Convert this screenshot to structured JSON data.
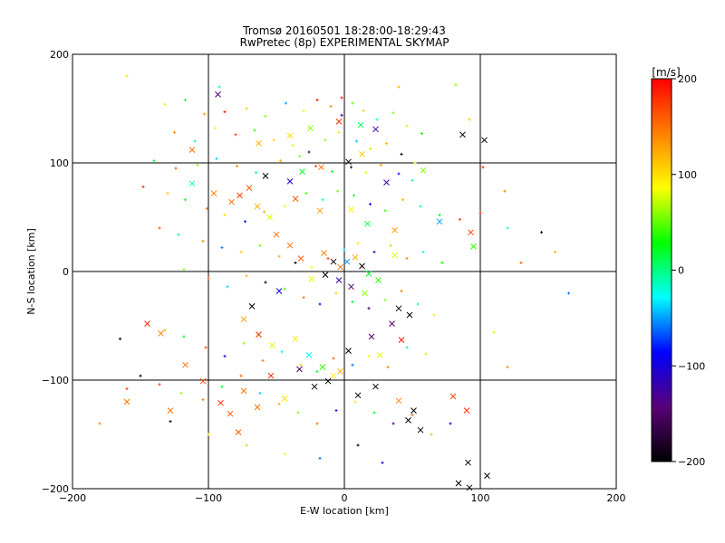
{
  "chart_data": {
    "type": "scatter",
    "title": "Tromsø 20160501 18:28:00-18:29:43",
    "subtitle": "RwPretec (8p) EXPERIMENTAL SKYMAP",
    "xlabel": "E-W location [km]",
    "ylabel": "N-S location [km]",
    "xlim": [
      -200,
      200
    ],
    "ylim": [
      -200,
      200
    ],
    "xticks": [
      -200,
      -100,
      0,
      100,
      200
    ],
    "yticks": [
      -200,
      -100,
      0,
      100,
      200
    ],
    "grid": true,
    "colorbar": {
      "label": "[m/s]",
      "range": [
        -200,
        200
      ],
      "ticks": [
        -200,
        -100,
        0,
        100,
        200
      ],
      "colormap": [
        "#000000",
        "#5a0078",
        "#0000ff",
        "#00ffff",
        "#00ff00",
        "#ffff00",
        "#ff8000",
        "#ff0000"
      ]
    },
    "series": [
      {
        "marker": "x",
        "points": [
          [
            -93,
            163,
            -150
          ],
          [
            -112,
            112,
            150
          ],
          [
            -63,
            118,
            120
          ],
          [
            -40,
            125,
            100
          ],
          [
            -25,
            132,
            60
          ],
          [
            -4,
            138,
            180
          ],
          [
            12,
            135,
            10
          ],
          [
            23,
            131,
            -120
          ],
          [
            87,
            126,
            -200
          ],
          [
            103,
            121,
            -200
          ],
          [
            -58,
            88,
            -200
          ],
          [
            -40,
            83,
            -100
          ],
          [
            -31,
            92,
            20
          ],
          [
            -17,
            96,
            150
          ],
          [
            3,
            101,
            -200
          ],
          [
            13,
            108,
            110
          ],
          [
            31,
            82,
            -120
          ],
          [
            58,
            93,
            60
          ],
          [
            -112,
            81,
            -20
          ],
          [
            -96,
            72,
            140
          ],
          [
            -83,
            64,
            150
          ],
          [
            -77,
            70,
            170
          ],
          [
            -70,
            77,
            160
          ],
          [
            -64,
            60,
            120
          ],
          [
            -55,
            50,
            80
          ],
          [
            -36,
            67,
            160
          ],
          [
            -18,
            56,
            130
          ],
          [
            5,
            57,
            90
          ],
          [
            17,
            44,
            10
          ],
          [
            37,
            38,
            130
          ],
          [
            70,
            46,
            -50
          ],
          [
            93,
            36,
            170
          ],
          [
            95,
            23,
            40
          ],
          [
            -50,
            34,
            150
          ],
          [
            -40,
            24,
            150
          ],
          [
            -32,
            12,
            160
          ],
          [
            -15,
            17,
            140
          ],
          [
            -8,
            9,
            -200
          ],
          [
            -3,
            4,
            150
          ],
          [
            2,
            9,
            -50
          ],
          [
            8,
            13,
            120
          ],
          [
            13,
            5,
            -200
          ],
          [
            18,
            -2,
            20
          ],
          [
            -14,
            -3,
            -200
          ],
          [
            -4,
            -8,
            -120
          ],
          [
            5,
            -14,
            -150
          ],
          [
            15,
            -20,
            60
          ],
          [
            25,
            -8,
            40
          ],
          [
            37,
            15,
            80
          ],
          [
            -24,
            -7,
            80
          ],
          [
            -48,
            -18,
            -100
          ],
          [
            -68,
            -32,
            -200
          ],
          [
            -74,
            -44,
            130
          ],
          [
            -63,
            -58,
            180
          ],
          [
            -53,
            -68,
            80
          ],
          [
            -36,
            -62,
            90
          ],
          [
            -26,
            -77,
            -30
          ],
          [
            -16,
            -88,
            40
          ],
          [
            -8,
            -96,
            90
          ],
          [
            3,
            -73,
            -200
          ],
          [
            20,
            -60,
            -150
          ],
          [
            35,
            -48,
            -150
          ],
          [
            42,
            -63,
            190
          ],
          [
            26,
            -77,
            80
          ],
          [
            -145,
            -48,
            180
          ],
          [
            -135,
            -57,
            140
          ],
          [
            -117,
            -86,
            150
          ],
          [
            -104,
            -101,
            170
          ],
          [
            -91,
            -121,
            180
          ],
          [
            -84,
            -131,
            160
          ],
          [
            -74,
            -110,
            150
          ],
          [
            -64,
            -125,
            150
          ],
          [
            -54,
            -96,
            190
          ],
          [
            -44,
            -117,
            100
          ],
          [
            -33,
            -90,
            -150
          ],
          [
            -22,
            -106,
            -200
          ],
          [
            -12,
            -101,
            -200
          ],
          [
            -3,
            -92,
            120
          ],
          [
            10,
            -114,
            -200
          ],
          [
            23,
            -106,
            -200
          ],
          [
            40,
            -119,
            140
          ],
          [
            47,
            -137,
            -200
          ],
          [
            51,
            -128,
            -200
          ],
          [
            56,
            -146,
            -200
          ],
          [
            80,
            -115,
            170
          ],
          [
            90,
            -128,
            180
          ],
          [
            91,
            -176,
            -200
          ],
          [
            84,
            -195,
            -200
          ],
          [
            105,
            -188,
            -200
          ],
          [
            92,
            -199,
            -200
          ],
          [
            40,
            -34,
            -200
          ],
          [
            48,
            -40,
            -200
          ],
          [
            -160,
            -120,
            150
          ],
          [
            -128,
            -128,
            150
          ],
          [
            -78,
            -148,
            160
          ]
        ]
      },
      {
        "marker": "+",
        "points": [
          [
            -132,
            154,
            80
          ],
          [
            -117,
            158,
            20
          ],
          [
            -103,
            145,
            130
          ],
          [
            -88,
            147,
            190
          ],
          [
            -72,
            150,
            110
          ],
          [
            -58,
            143,
            60
          ],
          [
            -43,
            155,
            -50
          ],
          [
            -30,
            148,
            90
          ],
          [
            -20,
            158,
            190
          ],
          [
            -10,
            152,
            140
          ],
          [
            -2,
            144,
            -120
          ],
          [
            6,
            155,
            50
          ],
          [
            14,
            148,
            110
          ],
          [
            24,
            140,
            -20
          ],
          [
            36,
            146,
            60
          ],
          [
            46,
            134,
            100
          ],
          [
            57,
            127,
            30
          ],
          [
            -125,
            128,
            140
          ],
          [
            -110,
            120,
            -10
          ],
          [
            -95,
            132,
            90
          ],
          [
            -80,
            126,
            170
          ],
          [
            -66,
            130,
            40
          ],
          [
            -52,
            121,
            100
          ],
          [
            -38,
            116,
            80
          ],
          [
            -26,
            110,
            -150
          ],
          [
            -14,
            121,
            60
          ],
          [
            -4,
            128,
            100
          ],
          [
            9,
            120,
            -40
          ],
          [
            19,
            113,
            70
          ],
          [
            31,
            118,
            120
          ],
          [
            42,
            108,
            -200
          ],
          [
            52,
            100,
            80
          ],
          [
            -140,
            102,
            10
          ],
          [
            -124,
            95,
            160
          ],
          [
            -108,
            98,
            60
          ],
          [
            -94,
            104,
            -40
          ],
          [
            -79,
            97,
            140
          ],
          [
            -65,
            91,
            0
          ],
          [
            -47,
            102,
            120
          ],
          [
            -33,
            106,
            60
          ],
          [
            -21,
            97,
            170
          ],
          [
            -9,
            92,
            30
          ],
          [
            5,
            96,
            -150
          ],
          [
            16,
            91,
            80
          ],
          [
            27,
            98,
            130
          ],
          [
            40,
            90,
            -80
          ],
          [
            50,
            84,
            0
          ],
          [
            -148,
            78,
            180
          ],
          [
            -130,
            72,
            110
          ],
          [
            -117,
            66,
            20
          ],
          [
            -101,
            58,
            160
          ],
          [
            -88,
            52,
            100
          ],
          [
            -73,
            46,
            -80
          ],
          [
            -59,
            55,
            120
          ],
          [
            -44,
            60,
            80
          ],
          [
            -28,
            72,
            40
          ],
          [
            -16,
            66,
            -20
          ],
          [
            -5,
            74,
            60
          ],
          [
            7,
            70,
            20
          ],
          [
            19,
            62,
            -100
          ],
          [
            30,
            56,
            40
          ],
          [
            43,
            66,
            120
          ],
          [
            56,
            60,
            -10
          ],
          [
            70,
            52,
            30
          ],
          [
            85,
            48,
            170
          ],
          [
            100,
            54,
            180
          ],
          [
            120,
            40,
            -20
          ],
          [
            145,
            36,
            -200
          ],
          [
            -136,
            40,
            160
          ],
          [
            -122,
            34,
            0
          ],
          [
            -104,
            28,
            140
          ],
          [
            -90,
            22,
            -60
          ],
          [
            -76,
            18,
            110
          ],
          [
            -62,
            24,
            50
          ],
          [
            -48,
            14,
            120
          ],
          [
            -36,
            8,
            -200
          ],
          [
            -24,
            4,
            80
          ],
          [
            -12,
            12,
            170
          ],
          [
            0,
            20,
            -40
          ],
          [
            10,
            26,
            100
          ],
          [
            22,
            18,
            -120
          ],
          [
            34,
            24,
            60
          ],
          [
            46,
            12,
            140
          ],
          [
            58,
            18,
            -20
          ],
          [
            72,
            8,
            30
          ],
          [
            -118,
            2,
            60
          ],
          [
            -100,
            -6,
            160
          ],
          [
            -86,
            -14,
            -40
          ],
          [
            -72,
            -4,
            120
          ],
          [
            -58,
            -10,
            -200
          ],
          [
            -44,
            -16,
            40
          ],
          [
            -30,
            -24,
            150
          ],
          [
            -18,
            -30,
            -80
          ],
          [
            -6,
            -20,
            110
          ],
          [
            6,
            -28,
            20
          ],
          [
            18,
            -34,
            -160
          ],
          [
            30,
            -26,
            60
          ],
          [
            42,
            -18,
            140
          ],
          [
            54,
            -30,
            -20
          ],
          [
            66,
            -40,
            100
          ],
          [
            -132,
            -54,
            120
          ],
          [
            -118,
            -60,
            20
          ],
          [
            -102,
            -70,
            170
          ],
          [
            -88,
            -78,
            -100
          ],
          [
            -74,
            -66,
            60
          ],
          [
            -60,
            -82,
            140
          ],
          [
            -46,
            -74,
            -30
          ],
          [
            -32,
            -86,
            110
          ],
          [
            -20,
            -92,
            20
          ],
          [
            -8,
            -80,
            160
          ],
          [
            6,
            -86,
            -60
          ],
          [
            18,
            -78,
            80
          ],
          [
            32,
            -88,
            140
          ],
          [
            46,
            -70,
            -10
          ],
          [
            60,
            -76,
            100
          ],
          [
            -150,
            -96,
            -200
          ],
          [
            -136,
            -104,
            170
          ],
          [
            -120,
            -112,
            60
          ],
          [
            -104,
            -118,
            140
          ],
          [
            -90,
            -106,
            20
          ],
          [
            -76,
            -96,
            160
          ],
          [
            -62,
            -112,
            -40
          ],
          [
            -48,
            -122,
            120
          ],
          [
            -34,
            -130,
            60
          ],
          [
            -20,
            -140,
            150
          ],
          [
            -6,
            -128,
            -80
          ],
          [
            8,
            -120,
            100
          ],
          [
            22,
            -130,
            20
          ],
          [
            36,
            -140,
            -140
          ],
          [
            50,
            -132,
            160
          ],
          [
            64,
            -150,
            60
          ],
          [
            78,
            -140,
            -100
          ],
          [
            -165,
            -62,
            -200
          ],
          [
            -160,
            -108,
            170
          ],
          [
            -180,
            -140,
            140
          ],
          [
            -128,
            -138,
            -200
          ],
          [
            -100,
            -150,
            100
          ],
          [
            -72,
            -160,
            60
          ],
          [
            -44,
            -168,
            80
          ],
          [
            -18,
            -172,
            -60
          ],
          [
            10,
            -160,
            -200
          ],
          [
            28,
            -176,
            -100
          ],
          [
            120,
            -88,
            140
          ],
          [
            110,
            -56,
            80
          ],
          [
            130,
            8,
            160
          ],
          [
            155,
            18,
            120
          ],
          [
            165,
            -20,
            -60
          ],
          [
            118,
            74,
            140
          ],
          [
            102,
            96,
            180
          ],
          [
            92,
            140,
            110
          ],
          [
            -160,
            180,
            100
          ],
          [
            -92,
            170,
            -10
          ],
          [
            -2,
            160,
            190
          ],
          [
            40,
            170,
            120
          ],
          [
            82,
            172,
            60
          ]
        ]
      }
    ]
  }
}
